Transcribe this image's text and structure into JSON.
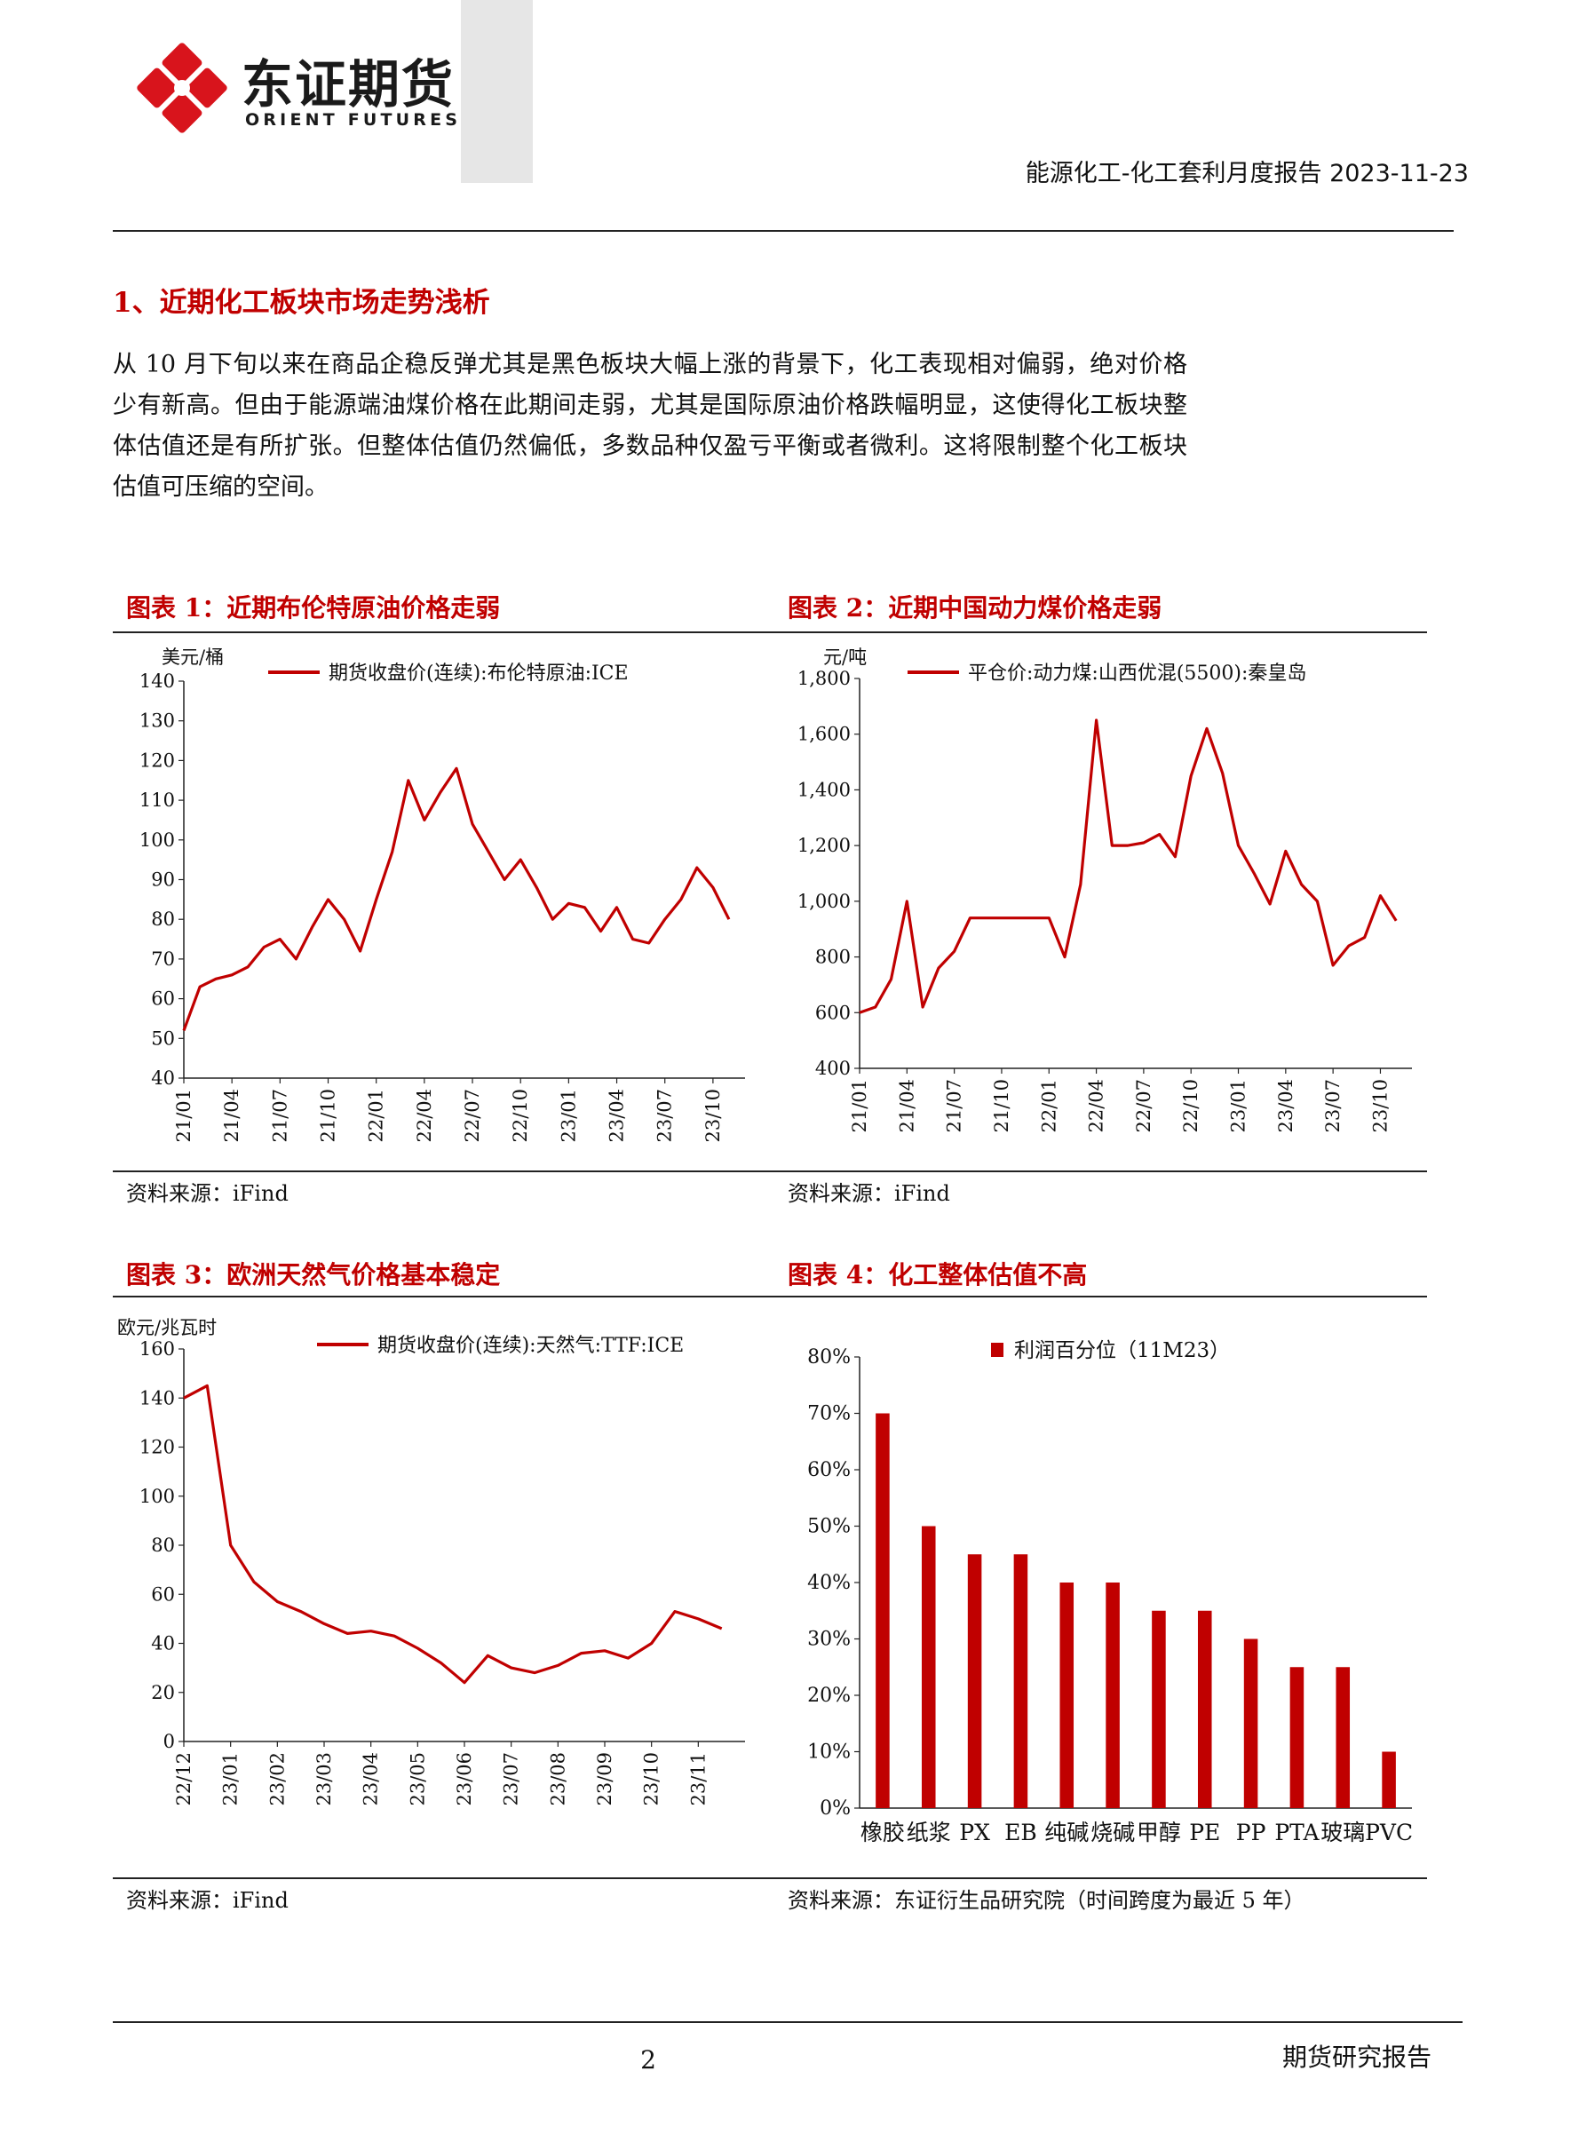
{
  "header": {
    "logo_cn": "东证期货",
    "logo_en": "ORIENT FUTURES",
    "report_title": "能源化工-化工套利月度报告 2023-11-23"
  },
  "section": {
    "title": "1、近期化工板块市场走势浅析",
    "paragraph": "从 10 月下旬以来在商品企稳反弹尤其是黑色板块大幅上涨的背景下，化工表现相对偏弱，绝对价格少有新高。但由于能源端油煤价格在此期间走弱，尤其是国际原油价格跌幅明显，这使得化工板块整体估值还是有所扩张。但整体估值仍然偏低，多数品种仅盈亏平衡或者微利。这将限制整个化工板块估值可压缩的空间。"
  },
  "figures": {
    "fig1": {
      "title": "图表 1：近期布伦特原油价格走弱",
      "source": "资料来源：iFind"
    },
    "fig2": {
      "title": "图表 2：近期中国动力煤价格走弱",
      "source": "资料来源：iFind"
    },
    "fig3": {
      "title": "图表 3：欧洲天然气价格基本稳定",
      "source": "资料来源：iFind"
    },
    "fig4": {
      "title": "图表 4：化工整体估值不高",
      "source": "资料来源：东证衍生品研究院（时间跨度为最近 5 年）"
    }
  },
  "footer": {
    "page": "2",
    "right": "期货研究报告"
  },
  "colors": {
    "accent": "#c00000",
    "line": "#c00000",
    "rule": "#222222",
    "band": "#e6e6e6"
  },
  "chart_data": [
    {
      "id": "brent",
      "type": "line",
      "ylabel": "美元/桶",
      "ylim": [
        40,
        140
      ],
      "yticks": [
        "40",
        "50",
        "60",
        "70",
        "80",
        "90",
        "100",
        "110",
        "120",
        "130",
        "140"
      ],
      "xticks": [
        "21/01",
        "21/04",
        "21/07",
        "21/10",
        "22/01",
        "22/04",
        "22/07",
        "22/10",
        "23/01",
        "23/04",
        "23/07",
        "23/10"
      ],
      "legend": "期货收盘价(连续):布伦特原油:ICE",
      "series": [
        {
          "name": "期货收盘价(连续):布伦特原油:ICE",
          "x": [
            "21/01",
            "21/02",
            "21/03",
            "21/04",
            "21/05",
            "21/06",
            "21/07",
            "21/08",
            "21/09",
            "21/10",
            "21/11",
            "21/12",
            "22/01",
            "22/02",
            "22/03",
            "22/04",
            "22/05",
            "22/06",
            "22/07",
            "22/08",
            "22/09",
            "22/10",
            "22/11",
            "22/12",
            "23/01",
            "23/02",
            "23/03",
            "23/04",
            "23/05",
            "23/06",
            "23/07",
            "23/08",
            "23/09",
            "23/10",
            "23/11"
          ],
          "values": [
            52,
            63,
            65,
            66,
            68,
            73,
            75,
            70,
            78,
            85,
            80,
            72,
            85,
            97,
            115,
            105,
            112,
            118,
            104,
            97,
            90,
            95,
            88,
            80,
            84,
            83,
            77,
            83,
            75,
            74,
            80,
            85,
            93,
            88,
            80
          ]
        }
      ]
    },
    {
      "id": "coal",
      "type": "line",
      "ylabel": "元/吨",
      "ylim": [
        400,
        1800
      ],
      "yticks": [
        "400",
        "600",
        "800",
        "1,000",
        "1,200",
        "1,400",
        "1,600",
        "1,800"
      ],
      "xticks": [
        "21/01",
        "21/04",
        "21/07",
        "21/10",
        "22/01",
        "22/04",
        "22/07",
        "22/10",
        "23/01",
        "23/04",
        "23/07",
        "23/10"
      ],
      "legend": "平仓价:动力煤:山西优混(5500):秦皇岛",
      "series": [
        {
          "name": "平仓价:动力煤:山西优混(5500):秦皇岛",
          "x": [
            "21/01",
            "21/02",
            "21/03",
            "21/04",
            "21/05",
            "21/06",
            "21/07",
            "21/08",
            "21/09",
            "21/10",
            "21/11",
            "21/12",
            "22/01",
            "22/02",
            "22/03",
            "22/04",
            "22/05",
            "22/06",
            "22/07",
            "22/08",
            "22/09",
            "22/10",
            "22/11",
            "22/12",
            "23/01",
            "23/02",
            "23/03",
            "23/04",
            "23/05",
            "23/06",
            "23/07",
            "23/08",
            "23/09",
            "23/10",
            "23/11"
          ],
          "values": [
            600,
            620,
            720,
            1000,
            620,
            760,
            820,
            940,
            940,
            940,
            940,
            940,
            940,
            800,
            1060,
            1650,
            1200,
            1200,
            1210,
            1240,
            1160,
            1450,
            1620,
            1460,
            1200,
            1100,
            990,
            1180,
            1060,
            1000,
            770,
            840,
            870,
            1020,
            930
          ]
        }
      ]
    },
    {
      "id": "ttf",
      "type": "line",
      "ylabel": "欧元/兆瓦时",
      "ylim": [
        0,
        160
      ],
      "yticks": [
        "0",
        "20",
        "40",
        "60",
        "80",
        "100",
        "120",
        "140",
        "160"
      ],
      "xticks": [
        "22/12",
        "23/01",
        "23/02",
        "23/03",
        "23/04",
        "23/05",
        "23/06",
        "23/07",
        "23/08",
        "23/09",
        "23/10",
        "23/11"
      ],
      "legend": "期货收盘价(连续):天然气:TTF:ICE",
      "series": [
        {
          "name": "期货收盘价(连续):天然气:TTF:ICE",
          "x": [
            "22/12",
            "22/12",
            "23/01",
            "23/01",
            "23/02",
            "23/02",
            "23/03",
            "23/03",
            "23/04",
            "23/04",
            "23/05",
            "23/05",
            "23/06",
            "23/06",
            "23/07",
            "23/07",
            "23/08",
            "23/08",
            "23/09",
            "23/09",
            "23/10",
            "23/10",
            "23/11",
            "23/11"
          ],
          "values": [
            140,
            145,
            80,
            65,
            57,
            53,
            48,
            44,
            45,
            43,
            38,
            32,
            24,
            35,
            30,
            28,
            31,
            36,
            37,
            34,
            40,
            53,
            50,
            46
          ]
        }
      ]
    },
    {
      "id": "profit",
      "type": "bar",
      "legend": "利润百分位（11M23）",
      "ylim": [
        0,
        80
      ],
      "yticks": [
        "0%",
        "10%",
        "20%",
        "30%",
        "40%",
        "50%",
        "60%",
        "70%",
        "80%"
      ],
      "categories": [
        "橡胶",
        "纸浆",
        "PX",
        "EB",
        "纯碱",
        "烧碱",
        "甲醇",
        "PE",
        "PP",
        "PTA",
        "玻璃",
        "PVC"
      ],
      "values": [
        70,
        50,
        45,
        45,
        40,
        40,
        35,
        35,
        30,
        25,
        25,
        10
      ]
    }
  ]
}
